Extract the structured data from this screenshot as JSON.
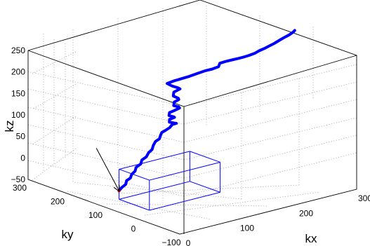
{
  "chart_data": {
    "type": "line-3d",
    "title": "",
    "xlabel": "kx",
    "ylabel": "ky",
    "zlabel": "kz",
    "xticks": [
      "0",
      "100",
      "200",
      "300"
    ],
    "yticks": [
      "−100",
      "0",
      "100",
      "200",
      "300"
    ],
    "zticks": [
      "−50",
      "0",
      "50",
      "100",
      "150",
      "200",
      "250"
    ],
    "xlim": [
      0,
      300
    ],
    "ylim": [
      -100,
      300
    ],
    "zlim": [
      -50,
      250
    ],
    "grid": true,
    "trajectory_color": "#0000ff",
    "start_marker_color": "#cc0000",
    "box_color": "#0000ff",
    "arrow_color": "#000000",
    "box": {
      "x": [
        0,
        120
      ],
      "y": [
        -20,
        60
      ],
      "z": [
        -20,
        50
      ]
    },
    "arrow": {
      "from": [
        0,
        120,
        80
      ],
      "to": [
        0,
        60,
        0
      ]
    },
    "trajectory": [
      [
        0,
        60,
        0
      ],
      [
        6,
        62,
        5
      ],
      [
        10,
        58,
        12
      ],
      [
        14,
        62,
        18
      ],
      [
        18,
        58,
        24
      ],
      [
        22,
        61,
        30
      ],
      [
        27,
        60,
        36
      ],
      [
        31,
        63,
        43
      ],
      [
        36,
        59,
        50
      ],
      [
        40,
        62,
        57
      ],
      [
        45,
        58,
        64
      ],
      [
        50,
        60,
        71
      ],
      [
        54,
        57,
        78
      ],
      [
        58,
        60,
        85
      ],
      [
        63,
        62,
        92
      ],
      [
        67,
        58,
        98
      ],
      [
        71,
        61,
        104
      ],
      [
        75,
        64,
        108
      ],
      [
        80,
        62,
        112
      ],
      [
        86,
        60,
        117
      ],
      [
        92,
        63,
        121
      ],
      [
        96,
        58,
        124
      ],
      [
        90,
        54,
        128
      ],
      [
        84,
        58,
        131
      ],
      [
        88,
        64,
        134
      ],
      [
        94,
        60,
        138
      ],
      [
        90,
        55,
        142
      ],
      [
        84,
        59,
        146
      ],
      [
        88,
        64,
        150
      ],
      [
        94,
        60,
        154
      ],
      [
        100,
        56,
        159
      ],
      [
        96,
        52,
        164
      ],
      [
        90,
        56,
        168
      ],
      [
        94,
        61,
        173
      ],
      [
        100,
        58,
        178
      ],
      [
        96,
        53,
        184
      ],
      [
        90,
        57,
        190
      ],
      [
        94,
        62,
        196
      ],
      [
        102,
        58,
        202
      ],
      [
        96,
        54,
        208
      ],
      [
        88,
        58,
        214
      ],
      [
        84,
        64,
        219
      ],
      [
        92,
        60,
        223
      ],
      [
        104,
        56,
        226
      ],
      [
        114,
        52,
        229
      ],
      [
        124,
        48,
        233
      ],
      [
        136,
        44,
        237
      ],
      [
        144,
        38,
        240
      ],
      [
        152,
        34,
        244
      ],
      [
        158,
        40,
        248
      ],
      [
        164,
        34,
        252
      ],
      [
        172,
        30,
        254
      ],
      [
        180,
        26,
        256
      ],
      [
        186,
        22,
        258
      ],
      [
        194,
        18,
        261
      ],
      [
        200,
        12,
        266
      ],
      [
        204,
        8,
        271
      ],
      [
        210,
        2,
        277
      ],
      [
        214,
        -4,
        283
      ],
      [
        218,
        -10,
        289
      ],
      [
        222,
        -16,
        296
      ],
      [
        226,
        -22,
        303
      ],
      [
        232,
        -28,
        310
      ],
      [
        236,
        -32,
        316
      ],
      [
        240,
        -30,
        318
      ]
    ]
  }
}
